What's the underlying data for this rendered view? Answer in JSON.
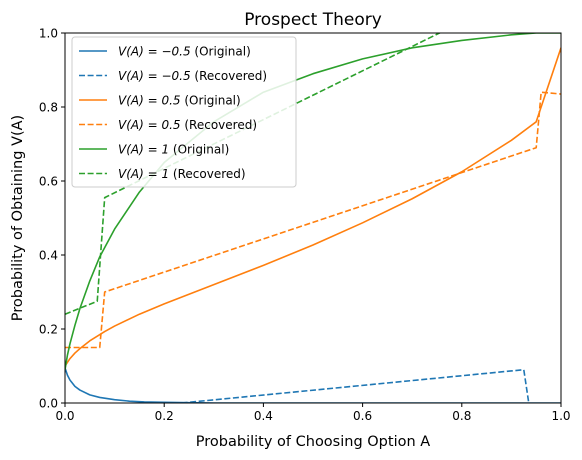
{
  "chart_data": {
    "type": "line",
    "title": "Prospect Theory",
    "xlabel": "Probability of Choosing Option A",
    "ylabel": "Probability of Obtaining V(A)",
    "xlim": [
      0,
      1
    ],
    "ylim": [
      0,
      1
    ],
    "grid": false,
    "legend_position": "top-left",
    "xticks": [
      "0.0",
      "0.2",
      "0.4",
      "0.6",
      "0.8",
      "1.0"
    ],
    "yticks": [
      "0.0",
      "0.2",
      "0.4",
      "0.6",
      "0.8",
      "1.0"
    ],
    "series": [
      {
        "name": "V(A) = −0.5 (Original)",
        "legend_math": "V(A) = −0.5",
        "legend_suffix": "(Original)",
        "color": "#1f77b4",
        "dash": "solid",
        "x": [
          0,
          0.005,
          0.01,
          0.02,
          0.03,
          0.05,
          0.07,
          0.1,
          0.13,
          0.16,
          0.2,
          0.25,
          0.3,
          0.4,
          0.6,
          0.8,
          1.0
        ],
        "y": [
          0.095,
          0.075,
          0.062,
          0.045,
          0.035,
          0.022,
          0.015,
          0.009,
          0.005,
          0.003,
          0.002,
          0.001,
          0.0,
          0.0,
          0.0,
          0.0,
          0.0
        ]
      },
      {
        "name": "V(A) = −0.5 (Recovered)",
        "legend_math": "V(A) = −0.5",
        "legend_suffix": "(Recovered)",
        "color": "#1f77b4",
        "dash": "dashed",
        "x": [
          0.235,
          0.925,
          0.935
        ],
        "y": [
          0.0,
          0.09,
          0.0
        ]
      },
      {
        "name": "V(A) = 0.5 (Original)",
        "legend_math": "V(A) = 0.5",
        "legend_suffix": "(Original)",
        "color": "#ff7f0e",
        "dash": "solid",
        "x": [
          0,
          0.01,
          0.02,
          0.03,
          0.05,
          0.08,
          0.1,
          0.15,
          0.2,
          0.3,
          0.4,
          0.5,
          0.6,
          0.7,
          0.8,
          0.9,
          0.95,
          1.0
        ],
        "y": [
          0.1,
          0.12,
          0.135,
          0.147,
          0.168,
          0.193,
          0.208,
          0.24,
          0.268,
          0.32,
          0.372,
          0.427,
          0.487,
          0.552,
          0.625,
          0.71,
          0.76,
          0.96
        ]
      },
      {
        "name": "V(A) = 0.5 (Recovered)",
        "legend_math": "V(A) = 0.5",
        "legend_suffix": "(Recovered)",
        "color": "#ff7f0e",
        "dash": "dashed",
        "x": [
          0,
          0.07,
          0.08,
          0.95,
          0.96,
          1.0
        ],
        "y": [
          0.15,
          0.15,
          0.3,
          0.69,
          0.84,
          0.835
        ]
      },
      {
        "name": "V(A) = 1 (Original)",
        "legend_math": "V(A) = 1",
        "legend_suffix": "(Original)",
        "color": "#2ca02c",
        "dash": "solid",
        "x": [
          0,
          0.005,
          0.01,
          0.02,
          0.03,
          0.05,
          0.07,
          0.1,
          0.15,
          0.2,
          0.3,
          0.4,
          0.5,
          0.6,
          0.7,
          0.8,
          0.9,
          0.95,
          1.0
        ],
        "y": [
          0.09,
          0.13,
          0.16,
          0.21,
          0.255,
          0.33,
          0.395,
          0.47,
          0.57,
          0.65,
          0.76,
          0.84,
          0.89,
          0.93,
          0.96,
          0.98,
          0.995,
          1.0,
          1.0
        ]
      },
      {
        "name": "V(A) = 1 (Recovered)",
        "legend_math": "V(A) = 1",
        "legend_suffix": "(Recovered)",
        "color": "#2ca02c",
        "dash": "dashed",
        "x": [
          0,
          0.065,
          0.08,
          0.755,
          0.775
        ],
        "y": [
          0.24,
          0.275,
          0.555,
          1.0,
          1.01
        ]
      }
    ]
  }
}
